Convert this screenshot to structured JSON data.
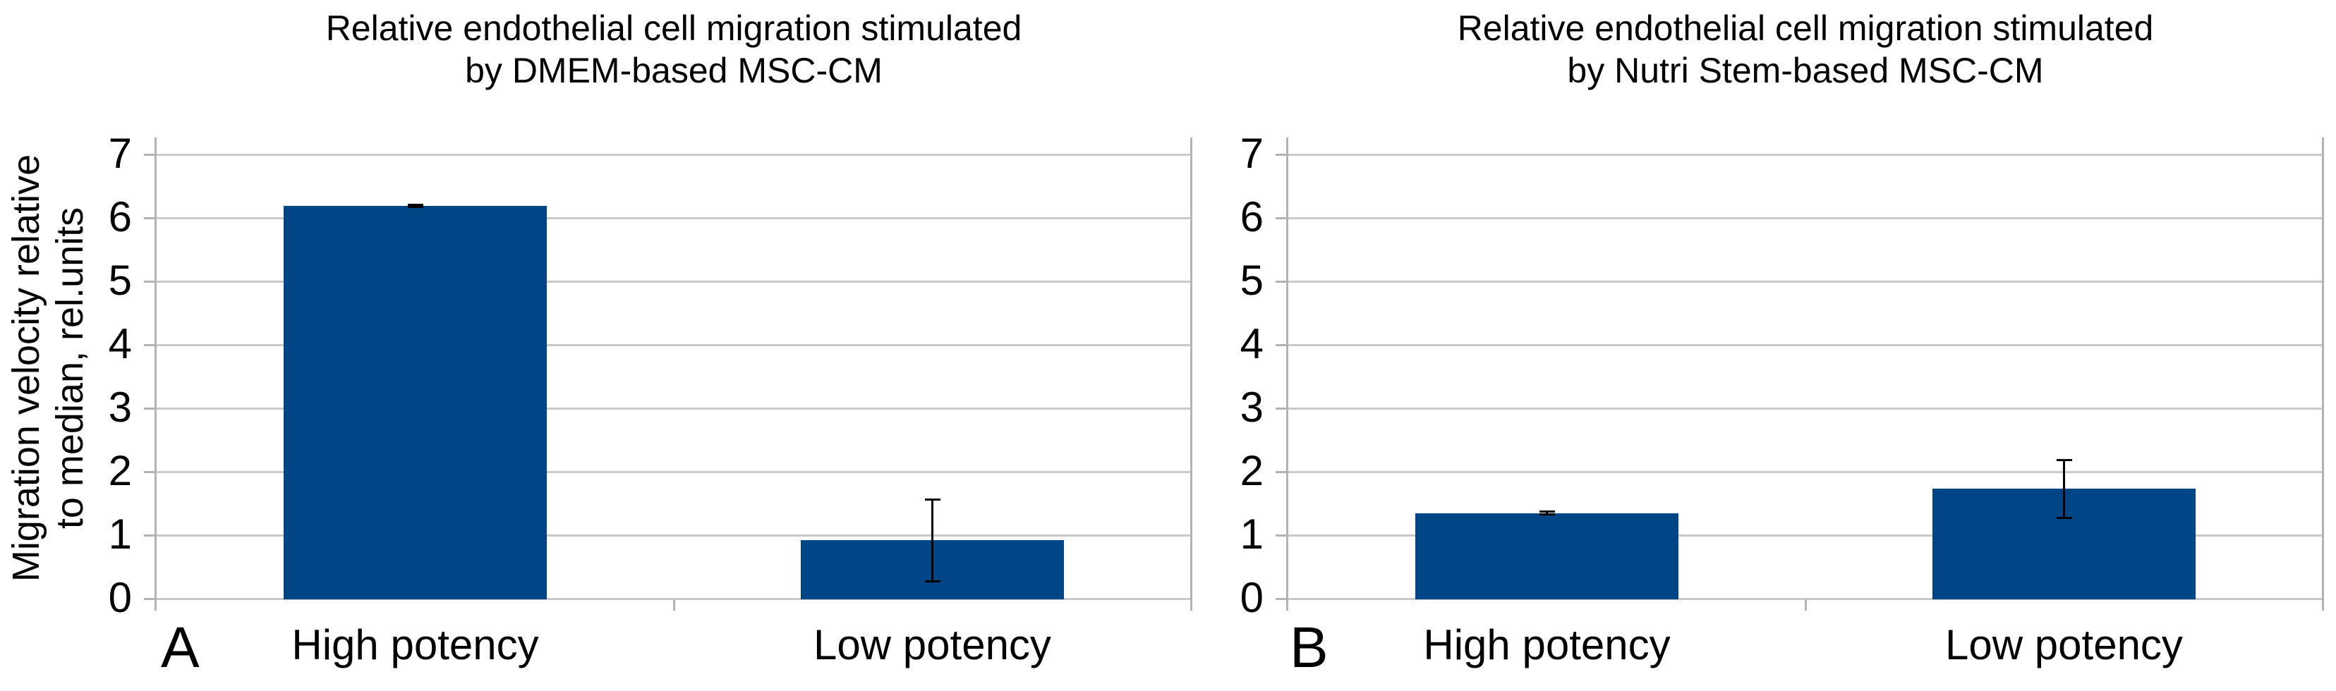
{
  "styles": {
    "bar_color": "#004586",
    "gridline_color": "#c9c9c9",
    "axis_color": "#b3b3b3",
    "error_bar_color": "#000000",
    "text_color": "#000000",
    "background": "#ffffff"
  },
  "chart_data": [
    {
      "type": "bar",
      "panel_label": "A",
      "title": "Relative endothelial cell migration stimulated by DMEM-based MSC-CM",
      "title_lines": [
        "Relative endothelial cell migration stimulated",
        "by DMEM-based MSC-CM"
      ],
      "ylabel": "Migration velocity relative to median, rel.units",
      "ylabel_lines": [
        "Migration velocity relative",
        "to median, rel.units"
      ],
      "xlabel": "",
      "categories": [
        "High potency",
        "Low potency"
      ],
      "values": [
        6.2,
        0.93
      ],
      "error_bars_plus_minus": [
        0.03,
        0.66
      ],
      "y_ticks": [
        0,
        1,
        2,
        3,
        4,
        5,
        6,
        7
      ],
      "ylim": [
        0,
        7.3
      ],
      "grid": "horizontal",
      "legend": "none"
    },
    {
      "type": "bar",
      "panel_label": "B",
      "title": "Relative endothelial cell migration stimulated by Nutri Stem-based MSC-CM",
      "title_lines": [
        "Relative endothelial cell migration stimulated",
        "by Nutri Stem-based MSC-CM"
      ],
      "ylabel": "",
      "ylabel_lines": [],
      "xlabel": "",
      "categories": [
        "High potency",
        "Low potency"
      ],
      "values": [
        1.36,
        1.74
      ],
      "error_bars_plus_minus": [
        0.04,
        0.47
      ],
      "y_ticks": [
        0,
        1,
        2,
        3,
        4,
        5,
        6,
        7
      ],
      "ylim": [
        0,
        7.3
      ],
      "grid": "horizontal",
      "legend": "none"
    }
  ]
}
